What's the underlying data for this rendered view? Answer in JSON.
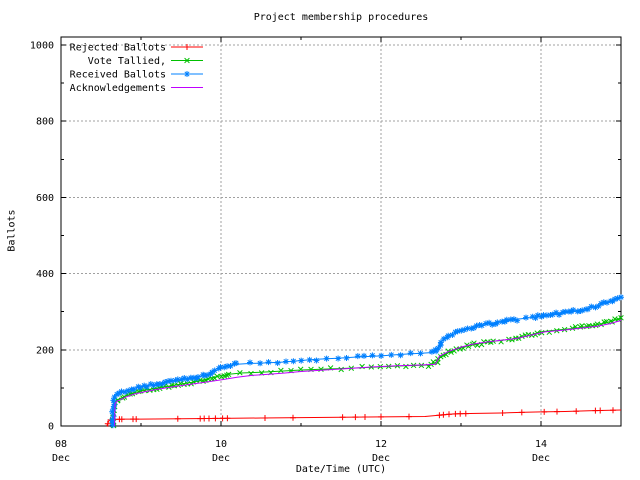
{
  "window": {
    "background": "#ffffff",
    "grid_color": "#a0a0a0",
    "border_color": "#000000"
  },
  "chart_data": {
    "type": "line",
    "title": "Project membership procedures",
    "xlabel": "Date/Time (UTC)",
    "ylabel": "Ballots",
    "xlim": [
      0,
      7
    ],
    "ylim": [
      0,
      1021
    ],
    "grid": {
      "major": true,
      "style": "dotted"
    },
    "legend_position": "top-left-inside",
    "x_major_ticks": [
      {
        "pos": 0,
        "label": [
          "08",
          "Dec"
        ]
      },
      {
        "pos": 2,
        "label": [
          "10",
          "Dec"
        ]
      },
      {
        "pos": 4,
        "label": [
          "12",
          "Dec"
        ]
      },
      {
        "pos": 6,
        "label": [
          "14",
          "Dec"
        ]
      }
    ],
    "x_minor_ticks": [
      1,
      3,
      5
    ],
    "y_major_ticks": [
      0,
      200,
      400,
      600,
      800,
      1000
    ],
    "y_minor_ticks": [
      100,
      300,
      500,
      700,
      900
    ],
    "series": [
      {
        "name": "Rejected Ballots",
        "color": "#ff0000",
        "marker": "plus",
        "points": [
          [
            0.57,
            0
          ],
          [
            0.585,
            6
          ],
          [
            0.6,
            14
          ],
          [
            0.63,
            17
          ],
          [
            0.8,
            18
          ],
          [
            1.0,
            18
          ],
          [
            1.5,
            19
          ],
          [
            2.0,
            20
          ],
          [
            2.5,
            21
          ],
          [
            3.0,
            22
          ],
          [
            3.5,
            23
          ],
          [
            4.0,
            24
          ],
          [
            4.55,
            25
          ],
          [
            4.72,
            28
          ],
          [
            4.8,
            30
          ],
          [
            4.95,
            32
          ],
          [
            5.2,
            33
          ],
          [
            5.5,
            34
          ],
          [
            5.8,
            36
          ],
          [
            6.0,
            37
          ],
          [
            6.3,
            38
          ],
          [
            6.6,
            40
          ],
          [
            6.8,
            41
          ],
          [
            7.0,
            42
          ]
        ],
        "marker_days": [
          0.585,
          0.62,
          0.73,
          0.76,
          0.9,
          0.94,
          1.46,
          1.74,
          1.79,
          1.85,
          1.93,
          2.02,
          2.08,
          2.55,
          2.9,
          3.52,
          3.68,
          3.8,
          4.0,
          4.35,
          4.73,
          4.78,
          4.85,
          4.93,
          4.99,
          5.06,
          5.52,
          5.76,
          6.04,
          6.2,
          6.44,
          6.68,
          6.74,
          6.9
        ]
      },
      {
        "name": "Vote Tallied,",
        "color": "#00c000",
        "marker": "cross",
        "points": [
          [
            0.65,
            0
          ],
          [
            0.658,
            52
          ],
          [
            0.67,
            62
          ],
          [
            0.72,
            70
          ],
          [
            0.8,
            78
          ],
          [
            0.9,
            86
          ],
          [
            1.0,
            92
          ],
          [
            1.15,
            98
          ],
          [
            1.3,
            103
          ],
          [
            1.5,
            110
          ],
          [
            1.7,
            117
          ],
          [
            1.85,
            125
          ],
          [
            2.0,
            132
          ],
          [
            2.1,
            136
          ],
          [
            2.25,
            139
          ],
          [
            2.5,
            141
          ],
          [
            2.75,
            144
          ],
          [
            3.0,
            147
          ],
          [
            3.25,
            149
          ],
          [
            3.5,
            151
          ],
          [
            3.75,
            153
          ],
          [
            4.0,
            155
          ],
          [
            4.3,
            158
          ],
          [
            4.6,
            160
          ],
          [
            4.7,
            168
          ],
          [
            4.74,
            180
          ],
          [
            4.85,
            193
          ],
          [
            4.95,
            202
          ],
          [
            5.1,
            211
          ],
          [
            5.25,
            217
          ],
          [
            5.4,
            222
          ],
          [
            5.6,
            227
          ],
          [
            5.8,
            235
          ],
          [
            6.0,
            247
          ],
          [
            6.2,
            252
          ],
          [
            6.4,
            256
          ],
          [
            6.6,
            262
          ],
          [
            6.75,
            268
          ],
          [
            6.9,
            276
          ],
          [
            7.0,
            284
          ]
        ]
      },
      {
        "name": "Received Ballots",
        "color": "#0080ff",
        "marker": "asterisk",
        "points": [
          [
            0.645,
            0
          ],
          [
            0.655,
            45
          ],
          [
            0.662,
            75
          ],
          [
            0.69,
            82
          ],
          [
            0.76,
            89
          ],
          [
            0.85,
            96
          ],
          [
            1.0,
            103
          ],
          [
            1.15,
            109
          ],
          [
            1.3,
            114
          ],
          [
            1.5,
            121
          ],
          [
            1.65,
            126
          ],
          [
            1.8,
            133
          ],
          [
            1.9,
            141
          ],
          [
            2.0,
            153
          ],
          [
            2.08,
            158
          ],
          [
            2.2,
            162
          ],
          [
            2.35,
            164
          ],
          [
            2.6,
            166
          ],
          [
            2.8,
            168
          ],
          [
            3.0,
            172
          ],
          [
            3.2,
            175
          ],
          [
            3.45,
            178
          ],
          [
            3.7,
            181
          ],
          [
            4.0,
            184
          ],
          [
            4.25,
            188
          ],
          [
            4.5,
            191
          ],
          [
            4.65,
            193
          ],
          [
            4.7,
            200
          ],
          [
            4.75,
            221
          ],
          [
            4.82,
            232
          ],
          [
            4.92,
            243
          ],
          [
            5.05,
            253
          ],
          [
            5.2,
            262
          ],
          [
            5.35,
            268
          ],
          [
            5.5,
            274
          ],
          [
            5.7,
            280
          ],
          [
            5.9,
            285
          ],
          [
            6.0,
            288
          ],
          [
            6.15,
            293
          ],
          [
            6.3,
            297
          ],
          [
            6.45,
            302
          ],
          [
            6.6,
            310
          ],
          [
            6.75,
            319
          ],
          [
            6.9,
            329
          ],
          [
            7.0,
            338
          ]
        ]
      },
      {
        "name": "Acknowledgements",
        "color": "#c000ff",
        "marker": "none",
        "points": [
          [
            0.67,
            0
          ],
          [
            0.675,
            58
          ],
          [
            0.7,
            65
          ],
          [
            0.8,
            75
          ],
          [
            0.9,
            83
          ],
          [
            1.0,
            88
          ],
          [
            1.2,
            96
          ],
          [
            1.4,
            103
          ],
          [
            1.6,
            109
          ],
          [
            1.8,
            115
          ],
          [
            2.0,
            121
          ],
          [
            2.2,
            128
          ],
          [
            2.4,
            133
          ],
          [
            2.6,
            136
          ],
          [
            2.8,
            139
          ],
          [
            3.0,
            143
          ],
          [
            3.3,
            147
          ],
          [
            3.6,
            151
          ],
          [
            3.9,
            155
          ],
          [
            4.2,
            158
          ],
          [
            4.5,
            160
          ],
          [
            4.68,
            162
          ],
          [
            4.73,
            183
          ],
          [
            4.85,
            196
          ],
          [
            5.0,
            207
          ],
          [
            5.15,
            215
          ],
          [
            5.3,
            220
          ],
          [
            5.5,
            225
          ],
          [
            5.7,
            230
          ],
          [
            5.9,
            240
          ],
          [
            6.05,
            247
          ],
          [
            6.3,
            252
          ],
          [
            6.5,
            257
          ],
          [
            6.7,
            262
          ],
          [
            6.85,
            268
          ],
          [
            7.0,
            277
          ]
        ]
      }
    ]
  }
}
